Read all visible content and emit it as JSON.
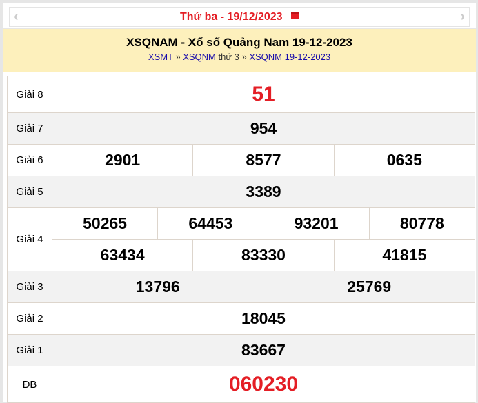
{
  "header": {
    "day": "Thứ ba - ",
    "date": "19/12/2023",
    "prev_icon": "chevron-left-icon",
    "next_icon": "chevron-right-icon",
    "calendar_icon": "calendar-icon"
  },
  "title": "XSQNAM - Xổ số Quảng Nam 19-12-2023",
  "breadcrumb": {
    "link1": "XSMT",
    "sep1": " » ",
    "link2": "XSQNM",
    "text": " thứ 3 » ",
    "link3": "XSQNM 19-12-2023"
  },
  "prizes": {
    "g8": {
      "label": "Giải 8",
      "values": [
        "51"
      ]
    },
    "g7": {
      "label": "Giải 7",
      "values": [
        "954"
      ]
    },
    "g6": {
      "label": "Giải 6",
      "values": [
        "2901",
        "8577",
        "0635"
      ]
    },
    "g5": {
      "label": "Giải 5",
      "values": [
        "3389"
      ]
    },
    "g4": {
      "label": "Giải 4",
      "values": [
        "50265",
        "64453",
        "93201",
        "80778",
        "63434",
        "83330",
        "41815"
      ]
    },
    "g3": {
      "label": "Giải 3",
      "values": [
        "13796",
        "25769"
      ]
    },
    "g2": {
      "label": "Giải 2",
      "values": [
        "18045"
      ]
    },
    "g1": {
      "label": "Giải 1",
      "values": [
        "83667"
      ]
    },
    "db": {
      "label": "ĐB",
      "values": [
        "060230"
      ]
    }
  },
  "colors": {
    "accent_red": "#e41e25",
    "band": "#fdf0bc",
    "row_alt": "#f2f2f2"
  }
}
